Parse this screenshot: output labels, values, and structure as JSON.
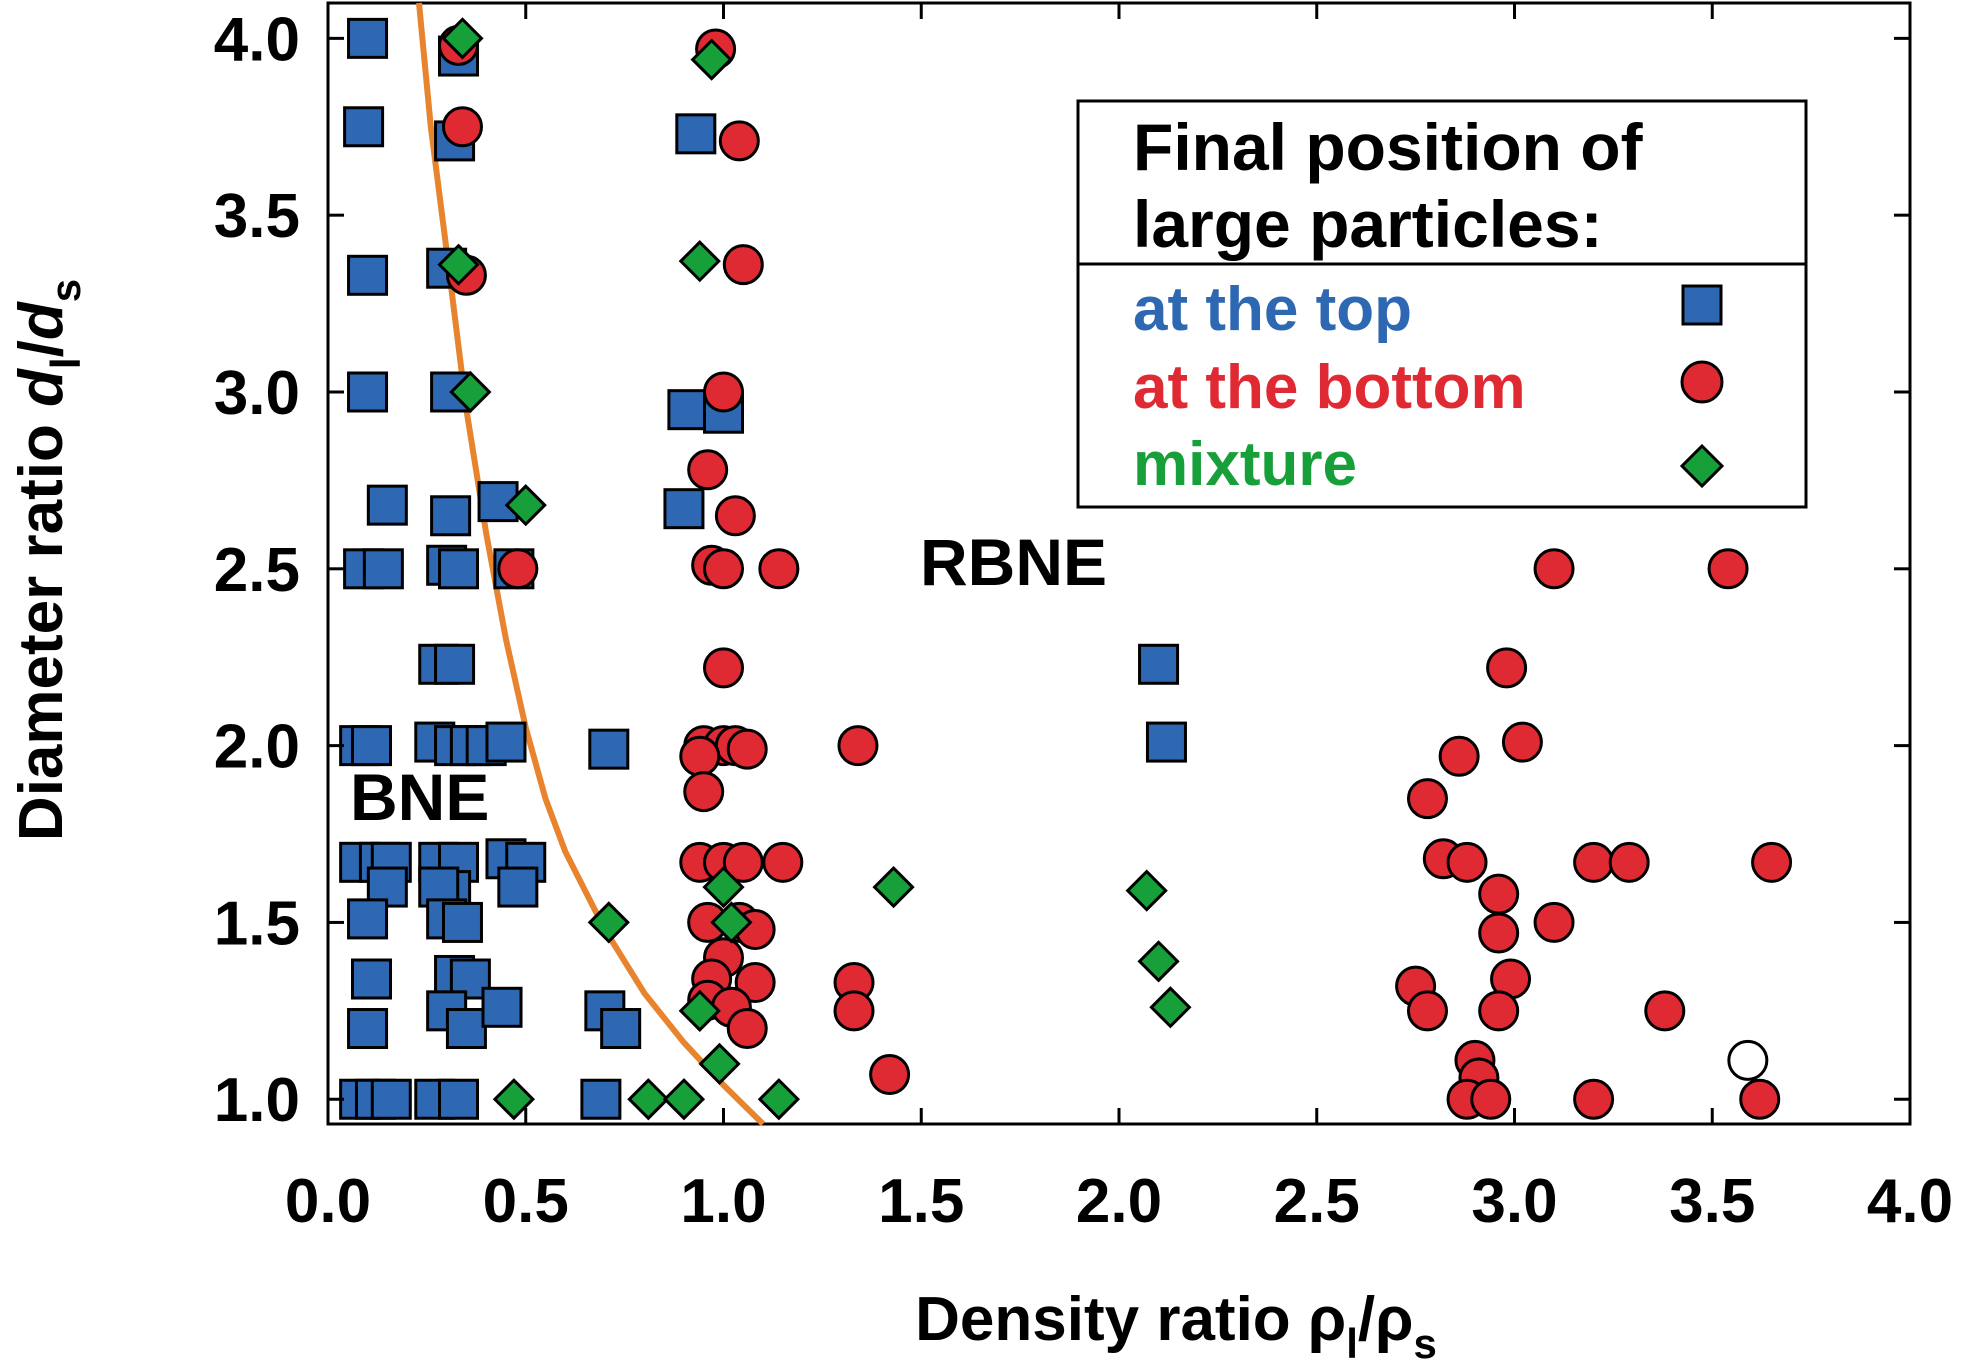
{
  "chart_data": {
    "type": "scatter",
    "title": "",
    "xlabel": "Density ratio ρl/ρs",
    "ylabel": "Diameter ratio dl/ds",
    "xlim": [
      0.0,
      4.0
    ],
    "ylim": [
      0.93,
      4.1
    ],
    "x_ticks": [
      "0.0",
      "0.5",
      "1.0",
      "1.5",
      "2.0",
      "2.5",
      "3.0",
      "3.5",
      "4.0"
    ],
    "y_ticks": [
      "1.0",
      "1.5",
      "2.0",
      "2.5",
      "3.0",
      "3.5",
      "4.0"
    ],
    "grid": false,
    "legend": {
      "position": "top-right",
      "title": "Final position of large particles:",
      "title_lines": [
        "Final position of",
        "large particles:"
      ]
    },
    "annotations": [
      {
        "text": "RBNE",
        "x": 1.42,
        "y": 2.5
      },
      {
        "text": "BNE",
        "x": 0.06,
        "y": 1.8
      }
    ],
    "colors": {
      "top": "#2f68b2",
      "bottom": "#e02a33",
      "mixture": "#17a03a",
      "boundary": "#e8832e"
    },
    "boundary_curve": {
      "description": "BNE/RBNE boundary",
      "points": [
        [
          0.23,
          4.1
        ],
        [
          0.26,
          3.75
        ],
        [
          0.3,
          3.4
        ],
        [
          0.35,
          2.95
        ],
        [
          0.4,
          2.6
        ],
        [
          0.45,
          2.3
        ],
        [
          0.5,
          2.05
        ],
        [
          0.55,
          1.85
        ],
        [
          0.6,
          1.7
        ],
        [
          0.7,
          1.48
        ],
        [
          0.8,
          1.3
        ],
        [
          0.9,
          1.16
        ],
        [
          1.0,
          1.04
        ],
        [
          1.1,
          0.93
        ]
      ]
    },
    "series": [
      {
        "name": "at the top",
        "marker": "square",
        "color": "#2f68b2",
        "points": [
          [
            0.1,
            4.0
          ],
          [
            0.09,
            3.75
          ],
          [
            0.1,
            3.33
          ],
          [
            0.1,
            3.0
          ],
          [
            0.15,
            2.68
          ],
          [
            0.09,
            2.5
          ],
          [
            0.14,
            2.5
          ],
          [
            0.08,
            2.0
          ],
          [
            0.11,
            2.0
          ],
          [
            0.08,
            1.67
          ],
          [
            0.13,
            1.67
          ],
          [
            0.16,
            1.67
          ],
          [
            0.15,
            1.6
          ],
          [
            0.1,
            1.51
          ],
          [
            0.11,
            1.34
          ],
          [
            0.1,
            1.2
          ],
          [
            0.08,
            1.0
          ],
          [
            0.12,
            1.0
          ],
          [
            0.16,
            1.0
          ],
          [
            0.33,
            3.95
          ],
          [
            0.32,
            3.71
          ],
          [
            0.3,
            3.35
          ],
          [
            0.31,
            3.0
          ],
          [
            0.31,
            2.65
          ],
          [
            0.3,
            2.51
          ],
          [
            0.33,
            2.5
          ],
          [
            0.28,
            2.23
          ],
          [
            0.32,
            2.23
          ],
          [
            0.27,
            2.01
          ],
          [
            0.32,
            2.0
          ],
          [
            0.36,
            2.0
          ],
          [
            0.4,
            2.0
          ],
          [
            0.45,
            2.01
          ],
          [
            0.28,
            1.67
          ],
          [
            0.33,
            1.67
          ],
          [
            0.31,
            1.59
          ],
          [
            0.28,
            1.6
          ],
          [
            0.3,
            1.51
          ],
          [
            0.34,
            1.5
          ],
          [
            0.32,
            1.35
          ],
          [
            0.36,
            1.34
          ],
          [
            0.3,
            1.25
          ],
          [
            0.35,
            1.2
          ],
          [
            0.27,
            1.0
          ],
          [
            0.33,
            1.0
          ],
          [
            0.43,
            2.69
          ],
          [
            0.47,
            2.5
          ],
          [
            0.45,
            1.68
          ],
          [
            0.5,
            1.67
          ],
          [
            0.48,
            1.6
          ],
          [
            0.44,
            1.26
          ],
          [
            0.71,
            1.99
          ],
          [
            0.7,
            1.25
          ],
          [
            0.74,
            1.2
          ],
          [
            0.69,
            1.0
          ],
          [
            0.93,
            3.73
          ],
          [
            0.91,
            2.95
          ],
          [
            1.0,
            2.94
          ],
          [
            0.9,
            2.67
          ],
          [
            2.1,
            2.23
          ],
          [
            2.12,
            2.01
          ]
        ]
      },
      {
        "name": "at the bottom",
        "marker": "circle",
        "color": "#e02a33",
        "points": [
          [
            0.33,
            3.98
          ],
          [
            0.34,
            3.75
          ],
          [
            0.35,
            3.33
          ],
          [
            0.48,
            2.5
          ],
          [
            0.98,
            3.97
          ],
          [
            1.04,
            3.71
          ],
          [
            1.05,
            3.36
          ],
          [
            1.0,
            3.0
          ],
          [
            0.96,
            2.78
          ],
          [
            1.03,
            2.65
          ],
          [
            0.97,
            2.51
          ],
          [
            1.0,
            2.5
          ],
          [
            1.14,
            2.5
          ],
          [
            1.0,
            2.22
          ],
          [
            0.95,
            2.0
          ],
          [
            1.0,
            2.0
          ],
          [
            1.03,
            2.0
          ],
          [
            1.06,
            1.99
          ],
          [
            0.94,
            1.97
          ],
          [
            0.95,
            1.87
          ],
          [
            0.94,
            1.67
          ],
          [
            1.0,
            1.67
          ],
          [
            1.05,
            1.67
          ],
          [
            1.15,
            1.67
          ],
          [
            0.96,
            1.5
          ],
          [
            1.04,
            1.5
          ],
          [
            1.08,
            1.48
          ],
          [
            1.0,
            1.4
          ],
          [
            0.97,
            1.34
          ],
          [
            1.08,
            1.33
          ],
          [
            0.96,
            1.28
          ],
          [
            1.02,
            1.26
          ],
          [
            1.06,
            1.2
          ],
          [
            1.34,
            2.0
          ],
          [
            1.33,
            1.33
          ],
          [
            1.33,
            1.25
          ],
          [
            1.42,
            1.07
          ],
          [
            3.1,
            2.5
          ],
          [
            3.54,
            2.5
          ],
          [
            2.98,
            2.22
          ],
          [
            3.02,
            2.01
          ],
          [
            2.86,
            1.97
          ],
          [
            2.78,
            1.85
          ],
          [
            2.82,
            1.68
          ],
          [
            2.88,
            1.67
          ],
          [
            2.96,
            1.58
          ],
          [
            3.2,
            1.67
          ],
          [
            3.29,
            1.67
          ],
          [
            3.65,
            1.67
          ],
          [
            3.1,
            1.5
          ],
          [
            2.96,
            1.47
          ],
          [
            2.75,
            1.32
          ],
          [
            2.99,
            1.34
          ],
          [
            2.78,
            1.25
          ],
          [
            2.96,
            1.25
          ],
          [
            3.38,
            1.25
          ],
          [
            2.9,
            1.11
          ],
          [
            2.91,
            1.06
          ],
          [
            2.88,
            1.0
          ],
          [
            2.94,
            1.0
          ],
          [
            3.2,
            1.0
          ],
          [
            3.62,
            1.0
          ]
        ]
      },
      {
        "name": "mixture",
        "marker": "diamond",
        "color": "#17a03a",
        "points": [
          [
            0.34,
            4.0
          ],
          [
            0.33,
            3.36
          ],
          [
            0.36,
            3.0
          ],
          [
            0.5,
            2.68
          ],
          [
            0.71,
            1.5
          ],
          [
            0.47,
            1.0
          ],
          [
            0.81,
            1.0
          ],
          [
            0.9,
            1.0
          ],
          [
            0.97,
            3.94
          ],
          [
            0.94,
            3.37
          ],
          [
            1.0,
            1.6
          ],
          [
            1.02,
            1.5
          ],
          [
            0.94,
            1.25
          ],
          [
            0.99,
            1.1
          ],
          [
            1.14,
            1.0
          ],
          [
            1.43,
            1.6
          ],
          [
            2.07,
            1.59
          ],
          [
            2.1,
            1.39
          ],
          [
            2.13,
            1.26
          ]
        ]
      },
      {
        "name": "",
        "marker": "open-circle",
        "color": "#ffffff",
        "points": [
          [
            3.59,
            1.11
          ]
        ]
      }
    ]
  },
  "legend_entries": [
    {
      "label": "at the top",
      "marker": "square",
      "color": "#2f68b2"
    },
    {
      "label": "at the bottom",
      "marker": "circle",
      "color": "#e02a33"
    },
    {
      "label": "mixture",
      "marker": "diamond",
      "color": "#17a03a"
    }
  ]
}
